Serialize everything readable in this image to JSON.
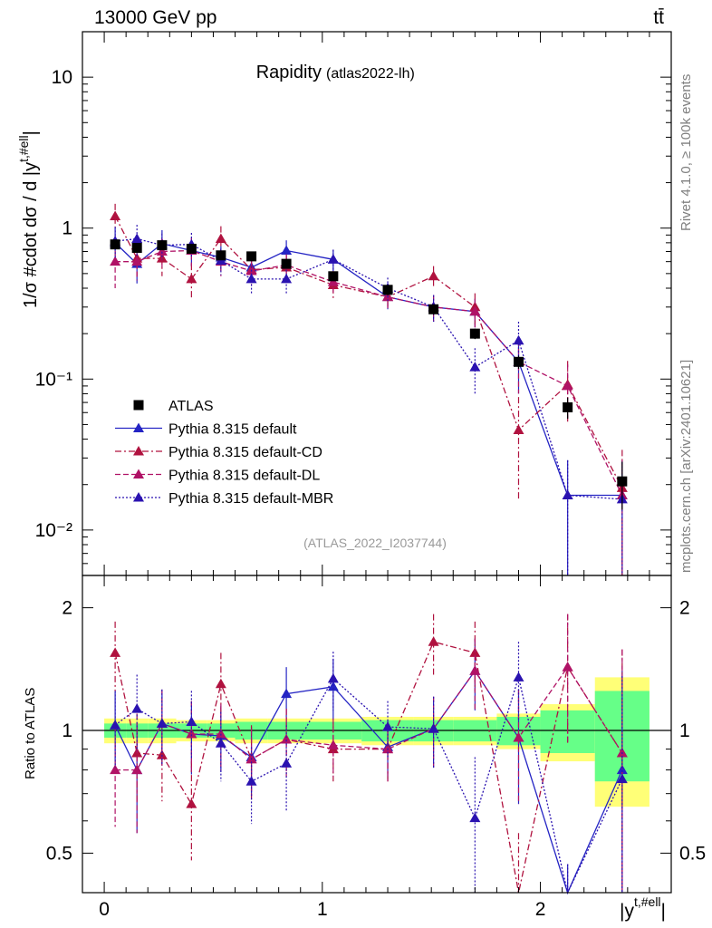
{
  "header": {
    "left": "13000 GeV pp",
    "right": "tt̄"
  },
  "side_labels": {
    "rivet": "Rivet 4.1.0, ≥ 100k events",
    "mcplots": "mcplots.cern.ch [arXiv:2401.10621]"
  },
  "chart_data": {
    "type": "scatter",
    "title": "Rapidity",
    "subtitle": "(atlas2022-lh)",
    "watermark": "(ATLAS_2022_I2037744)",
    "ylabel": "1/σ #cdot dσ / d |y^{t,#ell}|",
    "ylabel_main": "1/σ #cdot dσ / d |y",
    "ylabel_sup": "t,#ell",
    "ylabel_end": "|",
    "xlabel": "|y^{t,#ell}|",
    "xlabel_main": "|y",
    "xlabel_sup": "t,#ell",
    "xlabel_end": "|",
    "ratio_ylabel": "Ratio to ATLAS",
    "xlim": [
      -0.1,
      2.6
    ],
    "ylim": [
      0.005,
      20
    ],
    "ratio_ylim": [
      0.4,
      2.4
    ],
    "yscale": "log",
    "x_ticks": [
      "0",
      "1",
      "2"
    ],
    "y_ticks": [
      "10⁻²",
      "10⁻¹",
      "1",
      "10"
    ],
    "ratio_ticks": [
      "0.5",
      "1",
      "2"
    ],
    "legend": [
      {
        "label": "ATLAS",
        "color": "#000000",
        "style": "data"
      },
      {
        "label": "Pythia 8.315 default",
        "color": "#2424c4",
        "style": "solid"
      },
      {
        "label": "Pythia 8.315 default-CD",
        "color": "#b0123f",
        "style": "dashdot"
      },
      {
        "label": "Pythia 8.315 default-DL",
        "color": "#b01266",
        "style": "dashed"
      },
      {
        "label": "Pythia 8.315 default-MBR",
        "color": "#2a12b0",
        "style": "dotted"
      }
    ],
    "bins": [
      [
        0,
        0.1
      ],
      [
        0.1,
        0.2
      ],
      [
        0.2,
        0.33
      ],
      [
        0.33,
        0.47
      ],
      [
        0.47,
        0.6
      ],
      [
        0.6,
        0.75
      ],
      [
        0.75,
        0.92
      ],
      [
        0.92,
        1.18
      ],
      [
        1.18,
        1.42
      ],
      [
        1.42,
        1.6
      ],
      [
        1.6,
        1.8
      ],
      [
        1.8,
        2.0
      ],
      [
        2.0,
        2.25
      ],
      [
        2.25,
        2.5
      ]
    ],
    "x": [
      0.05,
      0.15,
      0.265,
      0.4,
      0.535,
      0.675,
      0.835,
      1.05,
      1.3,
      1.51,
      1.7,
      1.9,
      2.125,
      2.375
    ],
    "data": {
      "values": [
        0.78,
        0.74,
        0.77,
        0.73,
        0.66,
        0.65,
        0.58,
        0.48,
        0.39,
        0.29,
        0.2,
        0.13,
        0.065,
        0.021
      ],
      "stat_rel": [
        0.04,
        0.04,
        0.04,
        0.04,
        0.04,
        0.05,
        0.05,
        0.05,
        0.06,
        0.06,
        0.06,
        0.08,
        0.12,
        0.25
      ],
      "total_rel": [
        0.07,
        0.07,
        0.07,
        0.06,
        0.06,
        0.07,
        0.07,
        0.07,
        0.08,
        0.08,
        0.08,
        0.1,
        0.16,
        0.35
      ]
    },
    "series": [
      {
        "name": "Pythia 8.315 default",
        "values": [
          0.8,
          0.58,
          0.79,
          0.71,
          0.64,
          0.55,
          0.71,
          0.62,
          0.35,
          0.3,
          0.28,
          0.13,
          0.017,
          0.017
        ],
        "err": [
          0.2,
          0.15,
          0.18,
          0.15,
          0.12,
          0.1,
          0.12,
          0.1,
          0.06,
          0.06,
          0.06,
          0.05,
          0.012,
          0.012
        ]
      },
      {
        "name": "Pythia 8.315 default-CD",
        "values": [
          1.2,
          0.63,
          0.63,
          0.46,
          0.85,
          0.53,
          0.55,
          0.42,
          0.35,
          0.48,
          0.3,
          0.046,
          0.092,
          0.019
        ],
        "err": [
          0.25,
          0.15,
          0.15,
          0.12,
          0.18,
          0.1,
          0.11,
          0.08,
          0.06,
          0.08,
          0.07,
          0.03,
          0.04,
          0.015
        ]
      },
      {
        "name": "Pythia 8.315 default-DL",
        "values": [
          0.6,
          0.6,
          0.7,
          0.71,
          0.6,
          0.52,
          0.57,
          0.44,
          0.35,
          0.3,
          0.28,
          0.13,
          0.09,
          0.017
        ],
        "err": [
          0.2,
          0.15,
          0.15,
          0.15,
          0.12,
          0.1,
          0.1,
          0.08,
          0.06,
          0.06,
          0.06,
          0.05,
          0.035,
          0.012
        ]
      },
      {
        "name": "Pythia 8.315 default-MBR",
        "values": [
          0.82,
          0.85,
          0.77,
          0.78,
          0.61,
          0.46,
          0.46,
          0.62,
          0.4,
          0.3,
          0.12,
          0.18,
          0.017,
          0.016
        ],
        "err": [
          0.2,
          0.2,
          0.15,
          0.15,
          0.12,
          0.1,
          0.1,
          0.1,
          0.07,
          0.06,
          0.04,
          0.06,
          0.012,
          0.012
        ]
      }
    ],
    "ratios": [
      {
        "name": "Pythia 8.315 default",
        "values": [
          1.03,
          0.8,
          1.04,
          0.98,
          0.97,
          0.86,
          1.23,
          1.28,
          0.91,
          1.01,
          1.4,
          0.96,
          0.27,
          0.8
        ],
        "err": [
          0.22,
          0.24,
          0.22,
          0.2,
          0.18,
          0.16,
          0.2,
          0.22,
          0.15,
          0.2,
          0.28,
          0.3,
          0.2,
          0.6
        ]
      },
      {
        "name": "Pythia 8.315 default-CD",
        "values": [
          1.55,
          0.88,
          0.87,
          0.66,
          1.3,
          0.85,
          0.95,
          0.9,
          0.9,
          1.65,
          1.55,
          0.34,
          1.43,
          0.88
        ],
        "err": [
          0.3,
          0.22,
          0.2,
          0.18,
          0.25,
          0.18,
          0.18,
          0.15,
          0.15,
          0.28,
          0.3,
          0.22,
          0.5,
          0.7
        ]
      },
      {
        "name": "Pythia 8.315 default-DL",
        "values": [
          0.8,
          0.8,
          1.04,
          0.98,
          0.98,
          0.85,
          0.95,
          0.92,
          0.9,
          1.01,
          1.4,
          0.96,
          1.43,
          0.88
        ],
        "err": [
          0.22,
          0.24,
          0.22,
          0.2,
          0.18,
          0.16,
          0.18,
          0.15,
          0.15,
          0.2,
          0.28,
          0.3,
          0.5,
          0.7
        ]
      },
      {
        "name": "Pythia 8.315 default-MBR",
        "values": [
          1.03,
          1.13,
          1.04,
          1.05,
          0.93,
          0.75,
          0.83,
          1.34,
          1.02,
          1.01,
          0.61,
          1.35,
          0.27,
          0.76
        ],
        "err": [
          0.22,
          0.24,
          0.22,
          0.2,
          0.18,
          0.16,
          0.2,
          0.22,
          0.16,
          0.2,
          0.25,
          0.3,
          0.2,
          0.6
        ]
      }
    ]
  }
}
